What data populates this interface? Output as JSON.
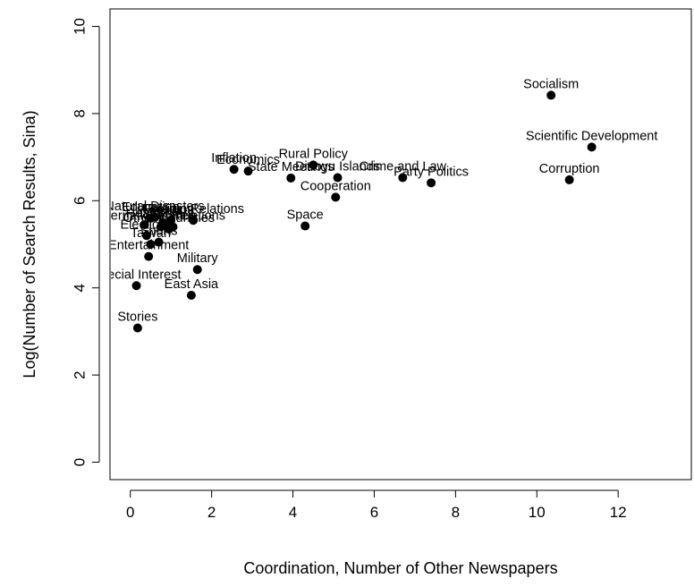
{
  "chart_data": {
    "type": "scatter",
    "title": "",
    "xlabel": "Coordination, Number of Other Newspapers",
    "ylabel": "Log(Number of Search Results, Sina)",
    "xlim": [
      -0.5,
      13.8
    ],
    "ylim": [
      -0.4,
      10.4
    ],
    "xticks": [
      0,
      2,
      4,
      6,
      8,
      10,
      12
    ],
    "yticks": [
      0,
      2,
      4,
      6,
      8,
      10
    ],
    "grid": false,
    "points": [
      {
        "label": "Socialism",
        "x": 10.35,
        "y": 8.42
      },
      {
        "label": "Scientific Development",
        "x": 11.35,
        "y": 7.23
      },
      {
        "label": "Corruption",
        "x": 10.8,
        "y": 6.48
      },
      {
        "label": "Crime and Law",
        "x": 6.7,
        "y": 6.53
      },
      {
        "label": "Party Politics",
        "x": 7.4,
        "y": 6.41
      },
      {
        "label": "Rural Policy",
        "x": 4.5,
        "y": 6.82
      },
      {
        "label": "Diaoyu Islands",
        "x": 5.1,
        "y": 6.53
      },
      {
        "label": "Cooperation",
        "x": 5.05,
        "y": 6.08
      },
      {
        "label": "Space",
        "x": 4.3,
        "y": 5.42
      },
      {
        "label": "Inflation",
        "x": 2.55,
        "y": 6.72
      },
      {
        "label": "Economics",
        "x": 2.9,
        "y": 6.68
      },
      {
        "label": "State Meetings",
        "x": 3.95,
        "y": 6.52
      },
      {
        "label": "Education",
        "x": 0.5,
        "y": 5.6
      },
      {
        "label": "Natural Disasters",
        "x": 0.6,
        "y": 5.62
      },
      {
        "label": "Unrest",
        "x": 0.8,
        "y": 5.5
      },
      {
        "label": "Disasters",
        "x": 0.9,
        "y": 5.45
      },
      {
        "label": "Religion",
        "x": 1.0,
        "y": 5.55
      },
      {
        "label": "Foreign Relations",
        "x": 1.55,
        "y": 5.55
      },
      {
        "label": "International Relations",
        "x": 0.75,
        "y": 5.4
      },
      {
        "label": "Health",
        "x": 0.35,
        "y": 5.45
      },
      {
        "label": "Finance",
        "x": 1.05,
        "y": 5.4
      },
      {
        "label": "Other Countries",
        "x": 0.95,
        "y": 5.35
      },
      {
        "label": "Elections",
        "x": 0.4,
        "y": 5.2
      },
      {
        "label": "Sports",
        "x": 0.7,
        "y": 5.05
      },
      {
        "label": "Taiwan",
        "x": 0.5,
        "y": 5.0
      },
      {
        "label": "Entertainment",
        "x": 0.45,
        "y": 4.72
      },
      {
        "label": "Military",
        "x": 1.65,
        "y": 4.42
      },
      {
        "label": "Special Interest",
        "x": 0.15,
        "y": 4.05
      },
      {
        "label": "East Asia",
        "x": 1.5,
        "y": 3.83
      },
      {
        "label": "Stories",
        "x": 0.18,
        "y": 3.08
      }
    ]
  }
}
